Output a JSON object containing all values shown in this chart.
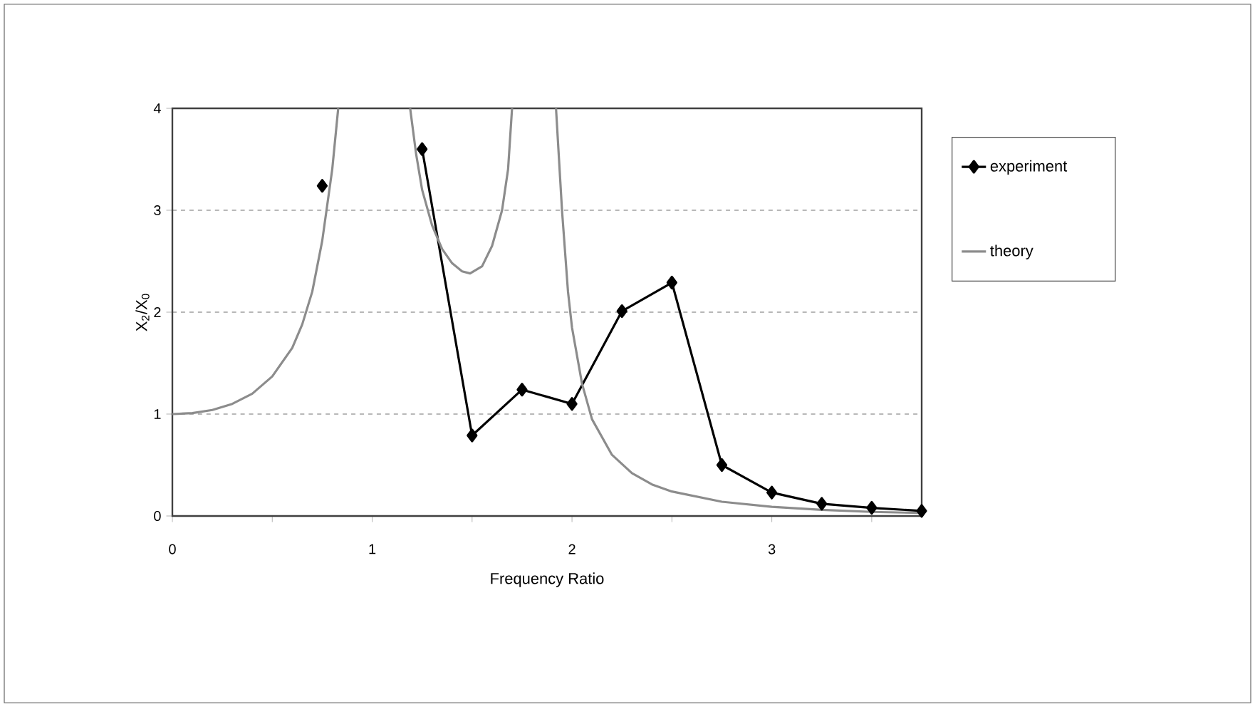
{
  "chart_data": {
    "type": "line",
    "xlabel": "Frequency Ratio",
    "ylabel": "X$_{2}$/X$_{0}$",
    "xlim": [
      0,
      3.75
    ],
    "ylim": [
      0,
      4
    ],
    "xticks": [
      0,
      {
        "value": 0.5,
        "label": null
      },
      1,
      {
        "value": 1.5,
        "label": null
      },
      2,
      {
        "value": 2.5,
        "label": null
      },
      3,
      {
        "value": 3.5,
        "label": null
      }
    ],
    "yticks": [
      0,
      1,
      2,
      3,
      4
    ],
    "grid": "y",
    "legend": "right",
    "series": [
      {
        "name": "experiment",
        "color": "#000000",
        "marker": "diamond",
        "x": [
          0.75,
          1.0,
          1.25,
          1.5,
          1.75,
          2.0,
          2.25,
          2.5,
          2.75,
          3.0,
          3.25,
          3.5,
          3.75
        ],
        "values": [
          3.24,
          null,
          3.6,
          0.79,
          1.24,
          1.1,
          2.01,
          2.29,
          0.5,
          0.23,
          0.12,
          0.08,
          0.05
        ]
      },
      {
        "name": "theory",
        "color": "#8c8c8c",
        "marker": "none",
        "x": [
          0,
          0.1,
          0.2,
          0.3,
          0.4,
          0.5,
          0.6,
          0.65,
          0.7,
          0.75,
          0.8,
          0.83,
          1.0,
          1.19,
          1.22,
          1.25,
          1.3,
          1.35,
          1.4,
          1.45,
          1.49,
          1.55,
          1.6,
          1.65,
          1.68,
          1.7,
          1.8,
          1.92,
          1.95,
          1.98,
          2.0,
          2.05,
          2.1,
          2.2,
          2.3,
          2.4,
          2.5,
          2.75,
          3.0,
          3.25,
          3.5,
          3.75
        ],
        "values": [
          1,
          1.01,
          1.04,
          1.1,
          1.2,
          1.37,
          1.65,
          1.88,
          2.2,
          2.7,
          3.4,
          4,
          null,
          4,
          3.55,
          3.2,
          2.85,
          2.62,
          2.48,
          2.4,
          2.38,
          2.45,
          2.65,
          3.0,
          3.4,
          4,
          null,
          4,
          3.0,
          2.2,
          1.85,
          1.3,
          0.95,
          0.6,
          0.42,
          0.31,
          0.24,
          0.14,
          0.09,
          0.06,
          0.04,
          0.03
        ]
      }
    ]
  }
}
